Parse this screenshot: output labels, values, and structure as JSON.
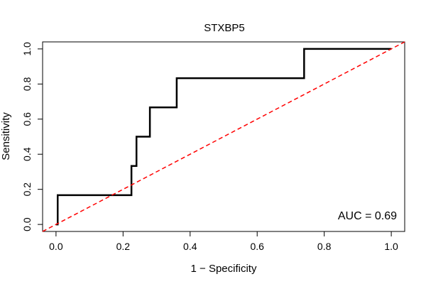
{
  "chart_data": {
    "type": "line",
    "title": "STXBP5",
    "xlabel": "1 − Specificity",
    "ylabel": "Sensitivity",
    "xlim": [
      -0.04,
      1.04
    ],
    "ylim": [
      -0.04,
      1.04
    ],
    "xticks": [
      0.0,
      0.2,
      0.4,
      0.6,
      0.8,
      1.0
    ],
    "xtick_labels": [
      "0.0",
      "0.2",
      "0.4",
      "0.6",
      "0.8",
      "1.0"
    ],
    "yticks": [
      0.0,
      0.2,
      0.4,
      0.6,
      0.8,
      1.0
    ],
    "ytick_labels": [
      "0.0",
      "0.2",
      "0.4",
      "0.6",
      "0.8",
      "1.0"
    ],
    "grid": false,
    "series": [
      {
        "color": "#000000",
        "style": "solid",
        "x": [
          0.0,
          0.005,
          0.005,
          0.225,
          0.225,
          0.24,
          0.24,
          0.28,
          0.28,
          0.36,
          0.36,
          0.74,
          0.74,
          1.0
        ],
        "y": [
          0.0,
          0.0,
          0.167,
          0.167,
          0.333,
          0.333,
          0.5,
          0.5,
          0.667,
          0.667,
          0.833,
          0.833,
          1.0,
          1.0
        ]
      },
      {
        "color": "#ff0000",
        "style": "dashed",
        "x": [
          -0.04,
          1.04
        ],
        "y": [
          -0.04,
          1.04
        ]
      }
    ],
    "annotation": "AUC = 0.69"
  }
}
